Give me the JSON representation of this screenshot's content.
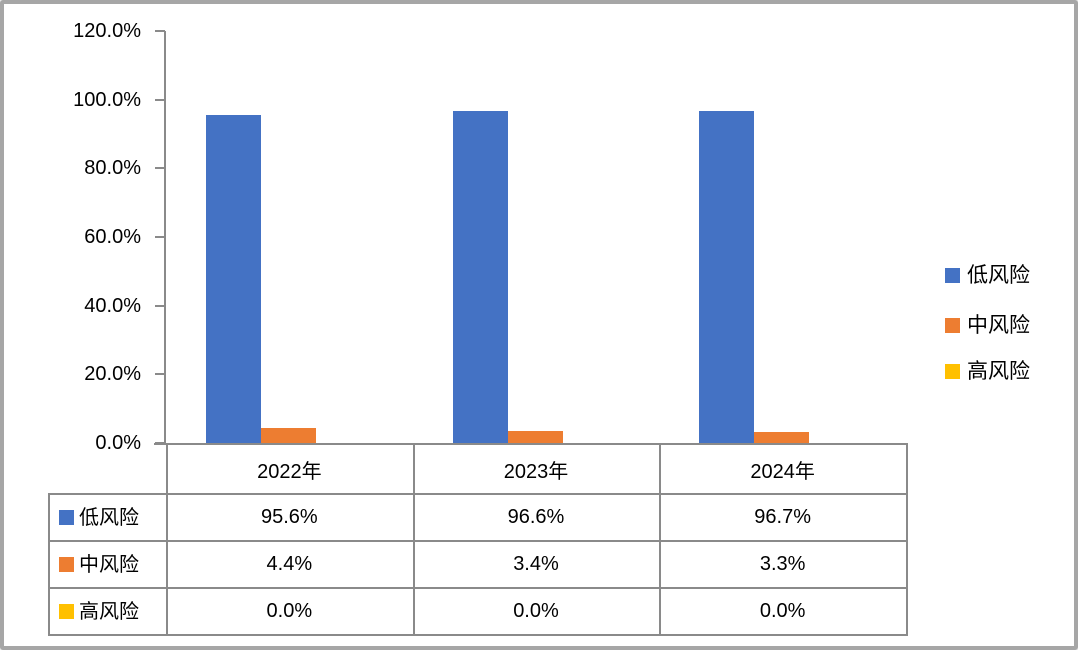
{
  "chart_data": {
    "type": "bar",
    "title": "",
    "categories": [
      "2022年",
      "2023年",
      "2024年"
    ],
    "series": [
      {
        "name": "低风险",
        "color": "#4472C4",
        "values": [
          95.6,
          96.6,
          96.7
        ],
        "value_labels": [
          "95.6%",
          "96.6%",
          "96.7%"
        ]
      },
      {
        "name": "中风险",
        "color": "#ED7D31",
        "values": [
          4.4,
          3.4,
          3.3
        ],
        "value_labels": [
          "4.4%",
          "3.4%",
          "3.3%"
        ]
      },
      {
        "name": "高风险",
        "color": "#FFC000",
        "values": [
          0.0,
          0.0,
          0.0
        ],
        "value_labels": [
          "0.0%",
          "0.0%",
          "0.0%"
        ]
      }
    ],
    "y_axis": {
      "min": 0,
      "max": 120,
      "step": 20,
      "tick_values": [
        0,
        20,
        40,
        60,
        80,
        100,
        120
      ],
      "tick_labels": [
        "0.0%",
        "20.0%",
        "40.0%",
        "60.0%",
        "80.0%",
        "100.0%",
        "120.0%"
      ]
    },
    "grid": false,
    "legend_position": "right",
    "has_data_table": true
  },
  "legend": {
    "items": [
      {
        "label": "低风险",
        "color": "#4472C4"
      },
      {
        "label": "中风险",
        "color": "#ED7D31"
      },
      {
        "label": "高风险",
        "color": "#FFC000"
      }
    ]
  },
  "data_table": {
    "column_headers": [
      "2022年",
      "2023年",
      "2024年"
    ],
    "rows": [
      {
        "label": "低风险",
        "swatch_color": "#4472C4",
        "values": [
          "95.6%",
          "96.6%",
          "96.7%"
        ]
      },
      {
        "label": "中风险",
        "swatch_color": "#ED7D31",
        "values": [
          "4.4%",
          "3.4%",
          "3.3%"
        ]
      },
      {
        "label": "高风险",
        "swatch_color": "#FFC000",
        "values": [
          "0.0%",
          "0.0%",
          "0.0%"
        ]
      }
    ]
  },
  "colors": {
    "series_low": "#4472C4",
    "series_mid": "#ED7D31",
    "series_high": "#FFC000",
    "axis_line": "#8a8a8a",
    "table_border": "#8a8a8a",
    "window_border": "#a6a6a6",
    "background": "#ffffff",
    "text": "#000000"
  }
}
